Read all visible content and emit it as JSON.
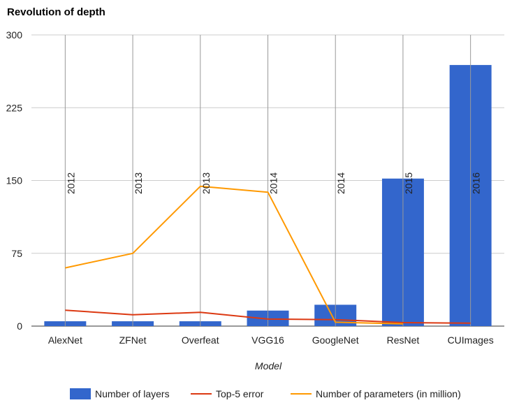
{
  "chart_data": {
    "type": "bar",
    "title": "Revolution of depth",
    "xlabel": "Model",
    "ylabel": "",
    "ylim": [
      0,
      300
    ],
    "yticks": [
      0,
      75,
      150,
      225,
      300
    ],
    "grid": true,
    "legend_position": "bottom",
    "categories": [
      "AlexNet",
      "ZFNet",
      "Overfeat",
      "VGG16",
      "GoogleNet",
      "ResNet",
      "CUImages"
    ],
    "annotations": [
      "2012",
      "2013",
      "2013",
      "2014",
      "2014",
      "2015",
      "2016"
    ],
    "series": [
      {
        "name": "Number of layers",
        "type": "bar",
        "color": "#3366cc",
        "values": [
          5,
          5,
          5,
          16,
          22,
          152,
          269
        ]
      },
      {
        "name": "Top-5 error",
        "type": "line",
        "color": "#dc3912",
        "values": [
          16.4,
          11.7,
          14.2,
          7.3,
          6.7,
          3.57,
          2.99
        ]
      },
      {
        "name": "Number of parameters (in million)",
        "type": "line",
        "color": "#ff9900",
        "values": [
          60,
          75,
          144,
          138,
          4,
          2.3,
          null
        ]
      }
    ]
  }
}
